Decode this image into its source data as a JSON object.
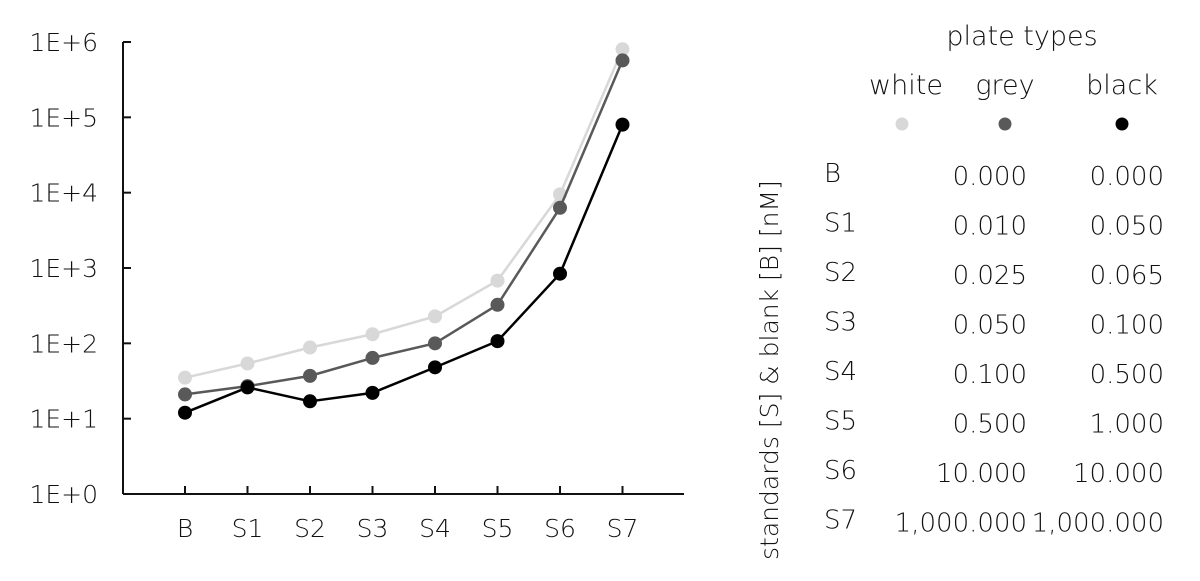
{
  "chart_data": {
    "type": "line",
    "y_scale": "log",
    "ylim": [
      1,
      1000000
    ],
    "grid": false,
    "categories": [
      "B",
      "S1",
      "S2",
      "S3",
      "S4",
      "S5",
      "S6",
      "S7"
    ],
    "y_ticks": [
      {
        "value": 1,
        "label": "1E+0"
      },
      {
        "value": 10,
        "label": "1E+1"
      },
      {
        "value": 100,
        "label": "1E+2"
      },
      {
        "value": 1000,
        "label": "1E+3"
      },
      {
        "value": 10000,
        "label": "1E+4"
      },
      {
        "value": 100000,
        "label": "1E+5"
      },
      {
        "value": 1000000,
        "label": "1E+6"
      }
    ],
    "series": [
      {
        "name": "white",
        "color": "#d8d8d8",
        "values": [
          35,
          54,
          88,
          132,
          228,
          680,
          9500,
          800000
        ]
      },
      {
        "name": "grey",
        "color": "#595959",
        "values": [
          21,
          27,
          37,
          64,
          100,
          325,
          6300,
          570000
        ]
      },
      {
        "name": "black",
        "color": "#000000",
        "values": [
          12,
          26,
          17,
          22,
          48,
          107,
          840,
          80000
        ]
      }
    ],
    "legend": {
      "title": "plate types",
      "placement": "right"
    }
  },
  "side_panel": {
    "vertical_label": "standards [S] & blank [B] [nM]",
    "rows": [
      {
        "label": "B",
        "grey": "0.000",
        "black": "0.000"
      },
      {
        "label": "S1",
        "grey": "0.010",
        "black": "0.050"
      },
      {
        "label": "S2",
        "grey": "0.025",
        "black": "0.065"
      },
      {
        "label": "S3",
        "grey": "0.050",
        "black": "0.100"
      },
      {
        "label": "S4",
        "grey": "0.100",
        "black": "0.500"
      },
      {
        "label": "S5",
        "grey": "0.500",
        "black": "1.000"
      },
      {
        "label": "S6",
        "grey": "10.000",
        "black": "10.000"
      },
      {
        "label": "S7",
        "grey": "1,000.000",
        "black": "1,000.000"
      }
    ]
  }
}
